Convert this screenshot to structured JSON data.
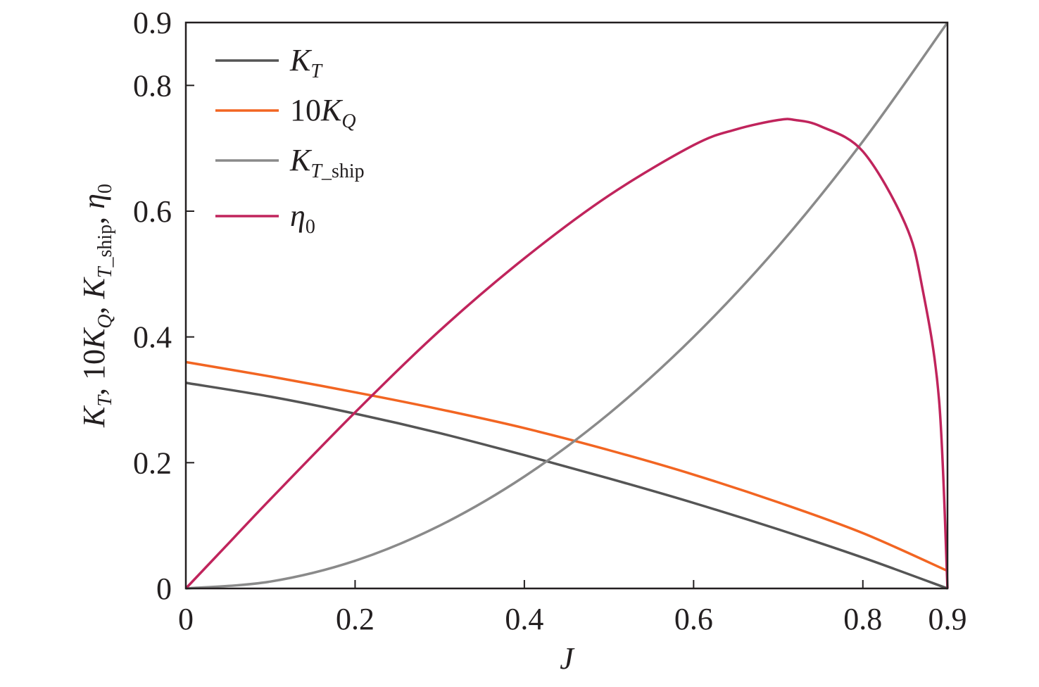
{
  "chart_data": {
    "type": "line",
    "xlabel": "J",
    "ylabel": "K_T, 10K_Q, K_T_ship, η0",
    "xlim": [
      0,
      0.9
    ],
    "ylim": [
      0,
      0.9
    ],
    "x_ticks": [
      "0",
      "0.2",
      "0.4",
      "0.6",
      "0.8",
      "0.9"
    ],
    "y_ticks": [
      "0",
      "0.2",
      "0.4",
      "0.6",
      "0.8",
      "0.9"
    ],
    "grid": false,
    "legend_position": "top-left",
    "series": [
      {
        "name": "K_T",
        "legend": {
          "base": "K",
          "sub": "T"
        },
        "color": "#555555",
        "x": [
          0,
          0.1,
          0.2,
          0.3,
          0.4,
          0.5,
          0.6,
          0.7,
          0.8,
          0.9
        ],
        "y": [
          0.327,
          0.305,
          0.278,
          0.247,
          0.212,
          0.175,
          0.136,
          0.094,
          0.049,
          0.0
        ]
      },
      {
        "name": "10K_Q",
        "legend": {
          "base": "10K",
          "sub": "Q"
        },
        "color": "#f26522",
        "x": [
          0,
          0.1,
          0.2,
          0.3,
          0.4,
          0.5,
          0.6,
          0.7,
          0.8,
          0.9
        ],
        "y": [
          0.36,
          0.337,
          0.312,
          0.285,
          0.255,
          0.22,
          0.181,
          0.137,
          0.088,
          0.028
        ]
      },
      {
        "name": "K_T_ship",
        "legend": {
          "base": "K",
          "sub": "T_ship"
        },
        "color": "#8a8a8a",
        "x": [
          0,
          0.1,
          0.2,
          0.3,
          0.4,
          0.5,
          0.6,
          0.7,
          0.8,
          0.9
        ],
        "y": [
          0.0,
          0.011,
          0.044,
          0.1,
          0.178,
          0.278,
          0.4,
          0.544,
          0.711,
          0.9
        ]
      },
      {
        "name": "η0",
        "legend": {
          "base": "η",
          "sub": "0"
        },
        "color": "#c0245c",
        "x": [
          0,
          0.05,
          0.1,
          0.2,
          0.3,
          0.4,
          0.5,
          0.6,
          0.65,
          0.7,
          0.72,
          0.75,
          0.8,
          0.85,
          0.87,
          0.89,
          0.9
        ],
        "y": [
          0.0,
          0.071,
          0.142,
          0.28,
          0.41,
          0.525,
          0.625,
          0.705,
          0.73,
          0.745,
          0.745,
          0.735,
          0.695,
          0.58,
          0.48,
          0.3,
          0.0
        ]
      }
    ]
  }
}
